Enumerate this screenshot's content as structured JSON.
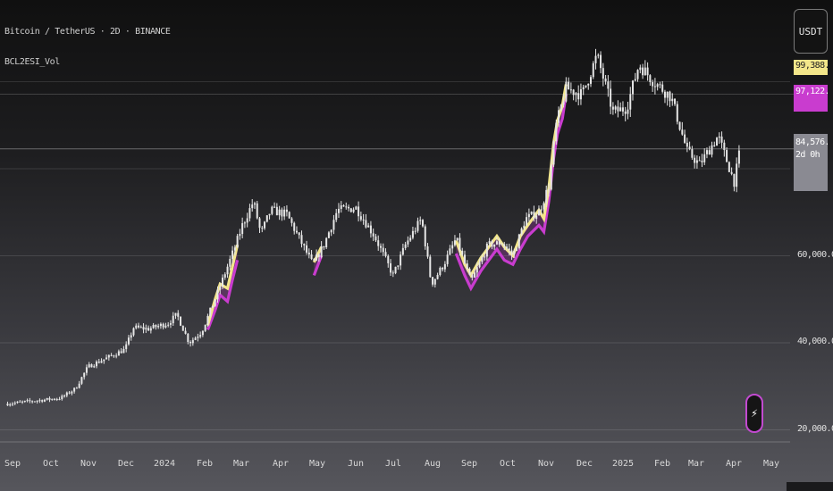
{
  "header": {
    "symbol_title": "Bitcoin / TetherUS · 2D · BINANCE",
    "indicator_label": "BCL2ESI_Vol"
  },
  "currency_button": "USDT",
  "price_labels": {
    "yellow": "99,388.81",
    "purple": "97,122.11",
    "last": "84,576.84",
    "countdown": "2d 0h"
  },
  "colors": {
    "candle": "#e6e6e6",
    "upper_band": "#f3e68a",
    "lower_band": "#c93ccf",
    "last_price_line": "#8a8a92"
  },
  "icons": {
    "lightning": "lightning-bolt-icon"
  },
  "chart_data": {
    "type": "candlestick",
    "title": "Bitcoin / TetherUS · 2D · BINANCE",
    "y_ticks": [
      "20,000.00",
      "40,000.00",
      "60,000.00"
    ],
    "x_ticks": [
      "Sep",
      "Oct",
      "Nov",
      "Dec",
      "2024",
      "Feb",
      "Mar",
      "Apr",
      "May",
      "Jun",
      "Jul",
      "Aug",
      "Sep",
      "Oct",
      "Nov",
      "Dec",
      "2025",
      "Feb",
      "Mar",
      "Apr",
      "May"
    ],
    "ylim": [
      14000,
      107000
    ],
    "close_path": [
      [
        "2023-08-28",
        26000
      ],
      [
        "2023-09-20",
        26700
      ],
      [
        "2023-10-10",
        27300
      ],
      [
        "2023-10-22",
        29500
      ],
      [
        "2023-11-01",
        34500
      ],
      [
        "2023-11-20",
        37000
      ],
      [
        "2023-12-01",
        38500
      ],
      [
        "2023-12-08",
        43500
      ],
      [
        "2023-12-20",
        43200
      ],
      [
        "2024-01-05",
        44500
      ],
      [
        "2024-01-12",
        46500
      ],
      [
        "2024-01-22",
        40000
      ],
      [
        "2024-02-01",
        42500
      ],
      [
        "2024-02-14",
        51500
      ],
      [
        "2024-02-28",
        62000
      ],
      [
        "2024-03-05",
        67000
      ],
      [
        "2024-03-14",
        72500
      ],
      [
        "2024-03-20",
        65000
      ],
      [
        "2024-03-28",
        70500
      ],
      [
        "2024-04-10",
        69500
      ],
      [
        "2024-04-20",
        64000
      ],
      [
        "2024-05-01",
        58000
      ],
      [
        "2024-05-10",
        62500
      ],
      [
        "2024-05-21",
        70500
      ],
      [
        "2024-06-05",
        71000
      ],
      [
        "2024-06-20",
        64500
      ],
      [
        "2024-07-05",
        55500
      ],
      [
        "2024-07-15",
        62500
      ],
      [
        "2024-07-28",
        68500
      ],
      [
        "2024-08-05",
        53500
      ],
      [
        "2024-08-15",
        58000
      ],
      [
        "2024-08-25",
        64000
      ],
      [
        "2024-09-06",
        54000
      ],
      [
        "2024-09-20",
        62500
      ],
      [
        "2024-10-01",
        63000
      ],
      [
        "2024-10-10",
        60000
      ],
      [
        "2024-10-20",
        68500
      ],
      [
        "2024-10-31",
        70000
      ],
      [
        "2024-11-08",
        76000
      ],
      [
        "2024-11-14",
        90000
      ],
      [
        "2024-11-22",
        98500
      ],
      [
        "2024-12-05",
        97000
      ],
      [
        "2024-12-17",
        106000
      ],
      [
        "2024-12-30",
        93000
      ],
      [
        "2025-01-10",
        94000
      ],
      [
        "2025-01-20",
        104000
      ],
      [
        "2025-02-01",
        100000
      ],
      [
        "2025-02-15",
        96500
      ],
      [
        "2025-02-28",
        84000
      ],
      [
        "2025-03-10",
        81000
      ],
      [
        "2025-03-25",
        87500
      ],
      [
        "2025-04-07",
        77000
      ],
      [
        "2025-04-12",
        84576.84
      ]
    ],
    "upper_band_path": [
      [
        "2024-02-06",
        44000
      ],
      [
        "2024-02-12",
        50000
      ],
      [
        "2024-02-16",
        53500
      ],
      [
        "2024-02-22",
        52500
      ],
      [
        "2024-02-26",
        57500
      ],
      [
        "2024-03-01",
        62500
      ],
      [
        "2024-05-02",
        58500
      ],
      [
        "2024-05-08",
        62000
      ],
      [
        "2024-08-25",
        63500
      ],
      [
        "2024-09-01",
        58000
      ],
      [
        "2024-09-06",
        55500
      ],
      [
        "2024-09-14",
        59500
      ],
      [
        "2024-09-27",
        64500
      ],
      [
        "2024-10-03",
        62000
      ],
      [
        "2024-10-10",
        60000
      ],
      [
        "2024-10-16",
        64500
      ],
      [
        "2024-10-22",
        67000
      ],
      [
        "2024-10-31",
        70500
      ],
      [
        "2024-11-04",
        68500
      ],
      [
        "2024-11-08",
        75500
      ],
      [
        "2024-11-12",
        86000
      ],
      [
        "2024-11-15",
        91000
      ],
      [
        "2024-11-19",
        94500
      ],
      [
        "2024-11-22",
        99388.81
      ]
    ],
    "lower_band_path": [
      [
        "2024-02-06",
        43000
      ],
      [
        "2024-02-12",
        47500
      ],
      [
        "2024-02-16",
        51000
      ],
      [
        "2024-02-22",
        49500
      ],
      [
        "2024-02-26",
        54500
      ],
      [
        "2024-03-01",
        59000
      ],
      [
        "2024-05-02",
        55500
      ],
      [
        "2024-05-08",
        60000
      ],
      [
        "2024-08-25",
        60500
      ],
      [
        "2024-09-01",
        55500
      ],
      [
        "2024-09-06",
        52500
      ],
      [
        "2024-09-14",
        56500
      ],
      [
        "2024-09-27",
        61500
      ],
      [
        "2024-10-03",
        59000
      ],
      [
        "2024-10-10",
        58000
      ],
      [
        "2024-10-16",
        61500
      ],
      [
        "2024-10-22",
        64500
      ],
      [
        "2024-10-31",
        67000
      ],
      [
        "2024-11-04",
        65500
      ],
      [
        "2024-11-08",
        72500
      ],
      [
        "2024-11-12",
        82500
      ],
      [
        "2024-11-15",
        88000
      ],
      [
        "2024-11-19",
        91500
      ],
      [
        "2024-11-22",
        97122.11
      ]
    ]
  }
}
